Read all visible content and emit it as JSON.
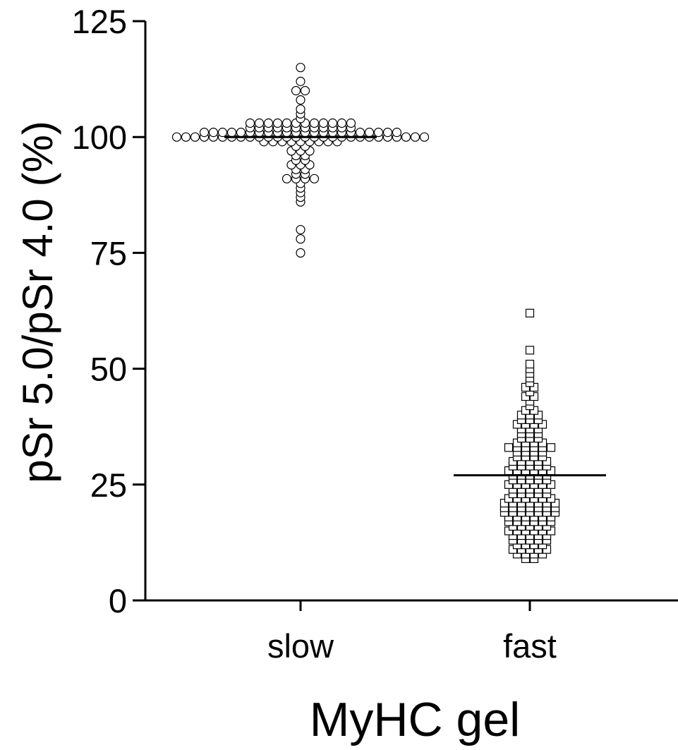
{
  "chart_data": {
    "type": "scatter",
    "subtype": "dot-plot (beeswarm) with mean line",
    "title": "",
    "xlabel": "MyHC gel",
    "ylabel": "pSr 5.0/pSr 4.0 (%)",
    "ylim": [
      0,
      125
    ],
    "yticks": [
      0,
      25,
      50,
      75,
      100,
      125
    ],
    "categories": [
      "slow",
      "fast"
    ],
    "grid": false,
    "legend": "none",
    "series": [
      {
        "category": "slow",
        "marker": "circle",
        "marker_fill": "#ffffff",
        "marker_stroke": "#000000",
        "mean": 100,
        "values": [
          115,
          112,
          110,
          110,
          108,
          106,
          105,
          104,
          103,
          103,
          103,
          103,
          103,
          103,
          103,
          103,
          103,
          103,
          103,
          103,
          102,
          102,
          102,
          102,
          102,
          102,
          102,
          102,
          102,
          102,
          102,
          102,
          101,
          101,
          101,
          101,
          101,
          101,
          101,
          101,
          101,
          101,
          101,
          101,
          101,
          101,
          101,
          101,
          101,
          101,
          101,
          101,
          101,
          101,
          100,
          100,
          100,
          100,
          100,
          100,
          100,
          100,
          100,
          100,
          100,
          100,
          100,
          100,
          100,
          100,
          100,
          100,
          100,
          100,
          100,
          100,
          100,
          100,
          100,
          100,
          100,
          100,
          99,
          99,
          99,
          99,
          99,
          99,
          99,
          99,
          99,
          98,
          98,
          97,
          97,
          97,
          96,
          96,
          95,
          95,
          94,
          94,
          94,
          93,
          93,
          92,
          92,
          91,
          91,
          91,
          91,
          90,
          89,
          88,
          87,
          86,
          80,
          78,
          75
        ]
      },
      {
        "category": "fast",
        "marker": "square",
        "marker_fill": "#ffffff",
        "marker_stroke": "#000000",
        "mean": 27,
        "values": [
          62,
          54,
          51,
          50,
          49,
          48,
          47,
          46,
          46,
          45,
          44,
          44,
          43,
          42,
          41,
          41,
          40,
          40,
          40,
          39,
          39,
          39,
          38,
          38,
          38,
          38,
          37,
          37,
          37,
          36,
          36,
          36,
          35,
          35,
          35,
          34,
          34,
          34,
          34,
          33,
          33,
          33,
          33,
          33,
          33,
          32,
          32,
          32,
          32,
          31,
          31,
          31,
          31,
          30,
          30,
          30,
          30,
          30,
          29,
          29,
          29,
          29,
          29,
          28,
          28,
          28,
          28,
          28,
          28,
          27,
          27,
          27,
          27,
          27,
          26,
          26,
          26,
          26,
          26,
          25,
          25,
          25,
          25,
          25,
          25,
          24,
          24,
          24,
          24,
          24,
          23,
          23,
          23,
          23,
          23,
          22,
          22,
          22,
          22,
          22,
          22,
          21,
          21,
          21,
          21,
          21,
          21,
          21,
          20,
          20,
          20,
          20,
          20,
          20,
          20,
          19,
          19,
          19,
          19,
          19,
          19,
          19,
          18,
          18,
          18,
          18,
          18,
          18,
          17,
          17,
          17,
          17,
          17,
          17,
          16,
          16,
          16,
          16,
          16,
          15,
          15,
          15,
          15,
          15,
          15,
          14,
          14,
          14,
          14,
          14,
          13,
          13,
          13,
          13,
          13,
          12,
          12,
          12,
          12,
          11,
          11,
          11,
          11,
          11,
          10,
          10,
          10,
          10,
          9,
          9
        ]
      }
    ]
  }
}
